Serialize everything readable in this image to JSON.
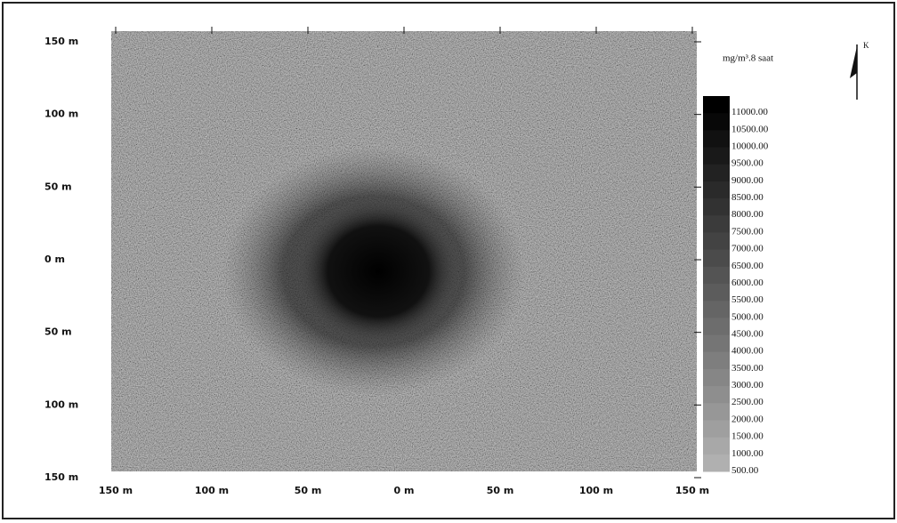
{
  "chart_data": {
    "type": "contour",
    "legend_title": "mg/m³.8 saat",
    "north_label": "K",
    "xlim": [
      -150,
      150
    ],
    "ylim": [
      -150,
      150
    ],
    "xticks": [
      {
        "value": -150,
        "label": "150 m"
      },
      {
        "value": -100,
        "label": "100 m"
      },
      {
        "value": -50,
        "label": "50 m"
      },
      {
        "value": 0,
        "label": "0 m"
      },
      {
        "value": 50,
        "label": "50 m"
      },
      {
        "value": 100,
        "label": "100 m"
      },
      {
        "value": 150,
        "label": "150 m"
      }
    ],
    "yticks": [
      {
        "value": 150,
        "label": "150 m"
      },
      {
        "value": 100,
        "label": "100 m"
      },
      {
        "value": 50,
        "label": "50 m"
      },
      {
        "value": 0,
        "label": "0 m"
      },
      {
        "value": -50,
        "label": "50 m"
      },
      {
        "value": -100,
        "label": "100 m"
      },
      {
        "value": -150,
        "label": "150 m"
      }
    ],
    "levels": [
      {
        "value": 11000,
        "label": "11000.00"
      },
      {
        "value": 10500,
        "label": "10500.00"
      },
      {
        "value": 10000,
        "label": "10000.00"
      },
      {
        "value": 9500,
        "label": "9500.00"
      },
      {
        "value": 9000,
        "label": "9000.00"
      },
      {
        "value": 8500,
        "label": "8500.00"
      },
      {
        "value": 8000,
        "label": "8000.00"
      },
      {
        "value": 7500,
        "label": "7500.00"
      },
      {
        "value": 7000,
        "label": "7000.00"
      },
      {
        "value": 6500,
        "label": "6500.00"
      },
      {
        "value": 6000,
        "label": "6000.00"
      },
      {
        "value": 5500,
        "label": "5500.00"
      },
      {
        "value": 5000,
        "label": "5000.00"
      },
      {
        "value": 4500,
        "label": "4500.00"
      },
      {
        "value": 4000,
        "label": "4000.00"
      },
      {
        "value": 3500,
        "label": "3500.00"
      },
      {
        "value": 3000,
        "label": "3000.00"
      },
      {
        "value": 2500,
        "label": "2500.00"
      },
      {
        "value": 2000,
        "label": "2000.00"
      },
      {
        "value": 1500,
        "label": "1500.00"
      },
      {
        "value": 1000,
        "label": "1000.00"
      },
      {
        "value": 500,
        "label": "500.00"
      }
    ],
    "colormap": [
      "#b0b0b0",
      "#000000"
    ]
  }
}
